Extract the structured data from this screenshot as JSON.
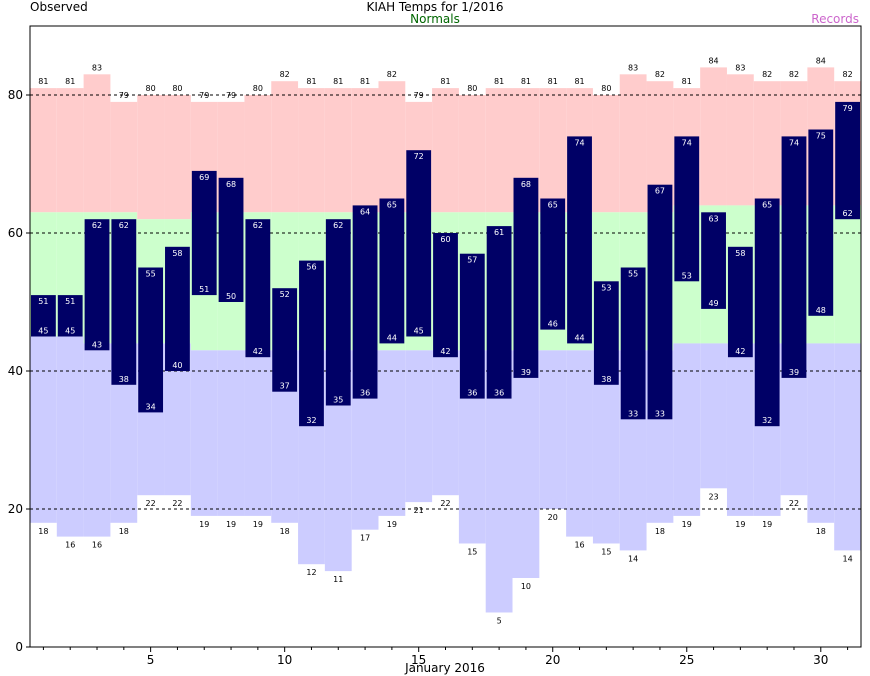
{
  "chart_data": {
    "type": "bar",
    "title": "KIAH Temps for 1/2016",
    "xlabel": "January 2016",
    "legend": {
      "observed": "Observed",
      "normals": "Normals",
      "records": "Records",
      "placement": "top"
    },
    "xlim": [
      0.5,
      31.5
    ],
    "ylim": [
      0,
      90
    ],
    "y_ticks": [
      0,
      20,
      40,
      60,
      80
    ],
    "x_ticks": [
      5,
      10,
      15,
      20,
      25,
      30
    ],
    "grid": "dashed horizontal at 20, 40, 60, 80",
    "days": [
      1,
      2,
      3,
      4,
      5,
      6,
      7,
      8,
      9,
      10,
      11,
      12,
      13,
      14,
      15,
      16,
      17,
      18,
      19,
      20,
      21,
      22,
      23,
      24,
      25,
      26,
      27,
      28,
      29,
      30,
      31
    ],
    "series": [
      {
        "name": "Observed",
        "key": "obs_high",
        "values": [
          51,
          51,
          62,
          62,
          55,
          58,
          69,
          68,
          62,
          52,
          56,
          62,
          64,
          65,
          72,
          60,
          57,
          61,
          68,
          65,
          74,
          53,
          55,
          67,
          74,
          63,
          58,
          65,
          74,
          75,
          79
        ]
      },
      {
        "name": "Observed",
        "key": "obs_low",
        "values": [
          45,
          45,
          43,
          38,
          34,
          40,
          51,
          50,
          42,
          37,
          32,
          35,
          36,
          44,
          45,
          42,
          36,
          36,
          39,
          46,
          44,
          38,
          33,
          33,
          53,
          49,
          42,
          32,
          39,
          48,
          62
        ]
      },
      {
        "name": "Normals",
        "key": "normal_high",
        "values": [
          63,
          63,
          63,
          63,
          62,
          62,
          63,
          63,
          63,
          63,
          63,
          63,
          63,
          63,
          63,
          63,
          63,
          63,
          63,
          63,
          63,
          63,
          63,
          63,
          64,
          64,
          64,
          64,
          64,
          64,
          64
        ]
      },
      {
        "name": "Normals",
        "key": "normal_low",
        "values": [
          45,
          45,
          44,
          44,
          44,
          44,
          43,
          43,
          43,
          43,
          43,
          43,
          43,
          43,
          43,
          43,
          43,
          43,
          43,
          43,
          43,
          43,
          43,
          43,
          44,
          44,
          44,
          44,
          44,
          44,
          44
        ]
      },
      {
        "name": "Records",
        "key": "record_high",
        "values": [
          81,
          81,
          83,
          79,
          80,
          80,
          79,
          79,
          80,
          82,
          81,
          81,
          81,
          82,
          79,
          81,
          80,
          81,
          81,
          81,
          81,
          80,
          83,
          82,
          81,
          84,
          83,
          82,
          82,
          84,
          82
        ]
      },
      {
        "name": "Records",
        "key": "record_low",
        "values": [
          18,
          16,
          16,
          18,
          22,
          22,
          19,
          19,
          19,
          18,
          12,
          11,
          17,
          19,
          21,
          22,
          15,
          5,
          10,
          20,
          16,
          15,
          14,
          18,
          19,
          23,
          19,
          19,
          22,
          18,
          14
        ]
      }
    ],
    "colors": {
      "observed": "#000066",
      "observed_label": "#ffffff",
      "normals_band": "#ccffcc",
      "record_high_band": "#ffcccc",
      "record_low_band": "#ccccff",
      "normals_text": "#006600",
      "records_text": "#cc66cc",
      "axis": "#000000",
      "grid": "#000000"
    }
  }
}
